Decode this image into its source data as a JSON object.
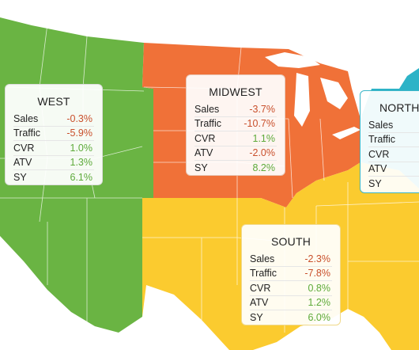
{
  "colors": {
    "west": "#6ab443",
    "midwest": "#f07138",
    "south": "#fbcb2f",
    "northeast": "#2db3c7",
    "border": "#ffffff",
    "negative": "#c9502c",
    "positive": "#5daa3a"
  },
  "regions": {
    "west": {
      "title": "WEST",
      "metrics": [
        {
          "label": "Sales",
          "value": "-0.3%",
          "trend": "neg"
        },
        {
          "label": "Traffic",
          "value": "-5.9%",
          "trend": "neg"
        },
        {
          "label": "CVR",
          "value": "1.0%",
          "trend": "pos"
        },
        {
          "label": "ATV",
          "value": "1.3%",
          "trend": "pos"
        },
        {
          "label": "SY",
          "value": "6.1%",
          "trend": "pos"
        }
      ]
    },
    "midwest": {
      "title": "MIDWEST",
      "metrics": [
        {
          "label": "Sales",
          "value": "-3.7%",
          "trend": "neg"
        },
        {
          "label": "Traffic",
          "value": "-10.7%",
          "trend": "neg"
        },
        {
          "label": "CVR",
          "value": "1.1%",
          "trend": "pos"
        },
        {
          "label": "ATV",
          "value": "-2.0%",
          "trend": "neg"
        },
        {
          "label": "SY",
          "value": "8.2%",
          "trend": "pos"
        }
      ]
    },
    "northeast": {
      "title": "NORTHE",
      "metrics": [
        {
          "label": "Sales",
          "value": "",
          "trend": "neg"
        },
        {
          "label": "Traffic",
          "value": "",
          "trend": "neg"
        },
        {
          "label": "CVR",
          "value": "",
          "trend": "pos"
        },
        {
          "label": "ATV",
          "value": "",
          "trend": "pos"
        },
        {
          "label": "SY",
          "value": "",
          "trend": "pos"
        }
      ]
    },
    "south": {
      "title": "SOUTH",
      "metrics": [
        {
          "label": "Sales",
          "value": "-2.3%",
          "trend": "neg"
        },
        {
          "label": "Traffic",
          "value": "-7.8%",
          "trend": "neg"
        },
        {
          "label": "CVR",
          "value": "0.8%",
          "trend": "pos"
        },
        {
          "label": "ATV",
          "value": "1.2%",
          "trend": "pos"
        },
        {
          "label": "SY",
          "value": "6.0%",
          "trend": "pos"
        }
      ]
    }
  }
}
